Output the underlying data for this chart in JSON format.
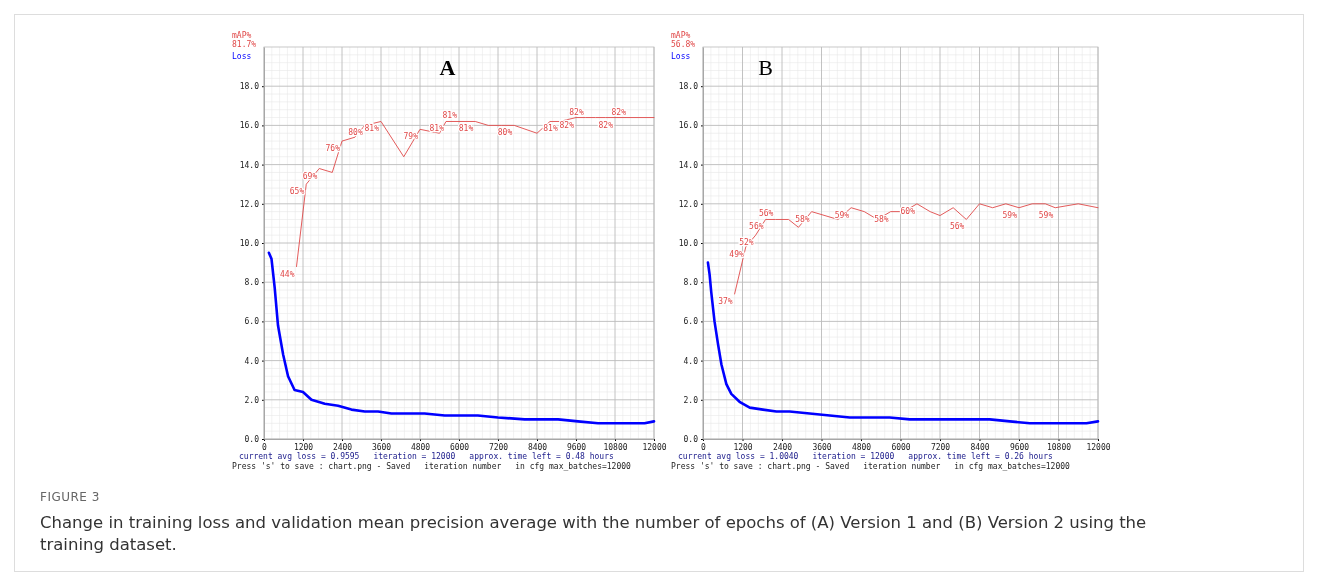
{
  "chart_data": [
    {
      "type": "line",
      "title": "A",
      "xlabel": "iteration number",
      "xlim": [
        0,
        12000
      ],
      "ylim": [
        0,
        20
      ],
      "y2lim": [
        0,
        100
      ],
      "xticks": [
        0,
        1200,
        2400,
        3600,
        4800,
        6000,
        7200,
        8400,
        9600,
        10800,
        12000
      ],
      "yticks": [
        {
          "value": 0,
          "label": "0.0"
        },
        {
          "value": 2,
          "label": "2.0"
        },
        {
          "value": 4,
          "label": "4.0"
        },
        {
          "value": 6,
          "label": "6.0"
        },
        {
          "value": 8,
          "label": "8.0"
        },
        {
          "value": 10,
          "label": "10.0"
        },
        {
          "value": 12,
          "label": "12.0"
        },
        {
          "value": 14,
          "label": "14.0"
        },
        {
          "value": 16,
          "label": "16.0"
        },
        {
          "value": 18,
          "label": "18.0"
        }
      ],
      "grid": true,
      "legend": "top left",
      "series": [
        {
          "name": "mAP%",
          "color": "#e04848",
          "axis": "y2",
          "x": [
            1000,
            1300,
            1700,
            2100,
            2400,
            2800,
            3100,
            3600,
            4300,
            4800,
            5400,
            5600,
            6000,
            6500,
            6900,
            7300,
            7700,
            8400,
            8800,
            9100,
            9600,
            9900,
            10200,
            10500,
            10800,
            11200,
            11600,
            12000
          ],
          "values": [
            44,
            65,
            69,
            68,
            76,
            77,
            80,
            81,
            72,
            79,
            78,
            81,
            81,
            81,
            80,
            80,
            80,
            78,
            81,
            81,
            82,
            82,
            82,
            82,
            82,
            82,
            82,
            82
          ],
          "value_labels": [
            "44%",
            "65%",
            "69%",
            null,
            "76%",
            null,
            "80%",
            "81%",
            null,
            "79%",
            null,
            "81%",
            "81%",
            "81%",
            null,
            null,
            "80%",
            null,
            null,
            "81%",
            "82%",
            "82%",
            null,
            null,
            "82%",
            "82%",
            null,
            null
          ]
        },
        {
          "name": "Loss",
          "color": "#0000ff",
          "x": [
            150,
            230,
            330,
            430,
            590,
            740,
            940,
            1200,
            1460,
            1870,
            2280,
            2690,
            3100,
            3510,
            3920,
            4530,
            4940,
            5560,
            5970,
            6580,
            7200,
            8020,
            8640,
            9050,
            9660,
            10280,
            11100,
            11710,
            12000
          ],
          "values": [
            9.5,
            9.2,
            7.7,
            5.8,
            4.3,
            3.2,
            2.5,
            2.4,
            2.0,
            1.8,
            1.7,
            1.5,
            1.4,
            1.4,
            1.3,
            1.3,
            1.3,
            1.2,
            1.2,
            1.2,
            1.1,
            1.0,
            1.0,
            1.0,
            0.9,
            0.8,
            0.8,
            0.8,
            0.9
          ]
        }
      ],
      "annotations": [
        "81.7%",
        "current avg loss = 0.9595",
        "iteration = 12000",
        "approx. time left = 0.48 hours",
        "Press 's' to save : chart.png - Saved",
        "in cfg max_batches=12000"
      ]
    },
    {
      "type": "line",
      "title": "B",
      "xlabel": "iteration number",
      "xlim": [
        0,
        12000
      ],
      "ylim": [
        0,
        20
      ],
      "y2lim": [
        0,
        100
      ],
      "xticks": [
        0,
        1200,
        2400,
        3600,
        4800,
        6000,
        7200,
        8400,
        9600,
        10800,
        12000
      ],
      "yticks": [
        {
          "value": 0,
          "label": "0.0"
        },
        {
          "value": 2,
          "label": "2.0"
        },
        {
          "value": 4,
          "label": "4.0"
        },
        {
          "value": 6,
          "label": "6.0"
        },
        {
          "value": 8,
          "label": "8.0"
        },
        {
          "value": 10,
          "label": "10.0"
        },
        {
          "value": 12,
          "label": "12.0"
        },
        {
          "value": 14,
          "label": "14.0"
        },
        {
          "value": 16,
          "label": "16.0"
        },
        {
          "value": 18,
          "label": "18.0"
        }
      ],
      "grid": true,
      "legend": "top left",
      "series": [
        {
          "name": "mAP%",
          "color": "#e04848",
          "axis": "y2",
          "x": [
            960,
            1300,
            1600,
            1900,
            2200,
            2600,
            2900,
            3300,
            4100,
            4500,
            4900,
            5300,
            5700,
            6100,
            6500,
            6900,
            7200,
            7600,
            8000,
            8400,
            8800,
            9200,
            9600,
            10000,
            10400,
            10700,
            11400,
            12000
          ],
          "values": [
            37,
            49,
            52,
            56,
            56,
            56,
            54,
            58,
            56,
            59,
            58,
            56,
            58,
            58,
            60,
            58,
            57,
            59,
            56,
            60,
            59,
            60,
            59,
            60,
            60,
            59,
            60,
            59
          ],
          "value_labels": [
            "37%",
            "49%",
            "52%",
            "56%",
            "56%",
            null,
            null,
            "58%",
            null,
            "59%",
            null,
            null,
            "58%",
            null,
            "60%",
            null,
            null,
            null,
            "56%",
            null,
            null,
            null,
            "59%",
            null,
            null,
            "59%",
            null,
            null
          ]
        },
        {
          "name": "Loss",
          "color": "#0000ff",
          "x": [
            150,
            200,
            250,
            350,
            460,
            560,
            710,
            860,
            1110,
            1420,
            1820,
            2230,
            2630,
            3240,
            3850,
            4460,
            5070,
            5670,
            6280,
            7090,
            7900,
            8710,
            9320,
            9930,
            10540,
            11140,
            11650,
            12000
          ],
          "values": [
            9.0,
            8.4,
            7.5,
            6.0,
            4.8,
            3.8,
            2.8,
            2.3,
            1.9,
            1.6,
            1.5,
            1.4,
            1.4,
            1.3,
            1.2,
            1.1,
            1.1,
            1.1,
            1.0,
            1.0,
            1.0,
            1.0,
            0.9,
            0.8,
            0.8,
            0.8,
            0.8,
            0.9
          ]
        }
      ],
      "annotations": [
        "56.8%",
        "current avg loss = 1.0040",
        "iteration = 12000",
        "approx. time left = 0.26 hours",
        "Press 's' to save : chart.png - Saved",
        "in cfg max_batches=12000"
      ]
    },
    {
      "type": "other",
      "title": "FIGURE 3",
      "annotations": [
        "Change in training loss and validation mean precision average with the number of epochs of (A) Version 1 and (B) Version 2 using the training dataset."
      ]
    }
  ]
}
